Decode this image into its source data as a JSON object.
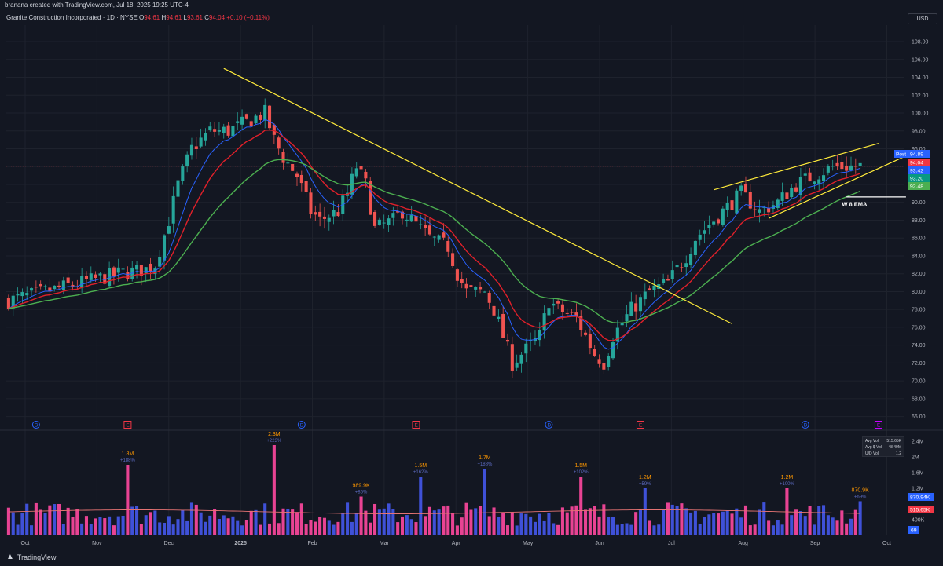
{
  "header": {
    "created_by": "branana created with TradingView.com, Jul 18, 2025 19:25 UTC-4",
    "instrument": "Granite Construction Incorporated · 1D · NYSE",
    "ohlc": {
      "o_label": "O",
      "o": "94.61",
      "h_label": "H",
      "h": "94.61",
      "l_label": "L",
      "l": "93.61",
      "c_label": "C",
      "c": "94.04",
      "change": "+0.10 (+0.11%)"
    },
    "currency": "USD"
  },
  "footer": {
    "brand": "TradingView"
  },
  "colors": {
    "background": "#131722",
    "up": "#26a69a",
    "down": "#ef5350",
    "ema_blue": "#2962ff",
    "ema_red": "#e0202a",
    "ema_green": "#4caf50",
    "trendline": "#ffeb3b",
    "vol_up": "#3f51d8",
    "vol_down": "#e84393"
  },
  "chart_data": [
    {
      "type": "candlestick",
      "price_axis": {
        "ticks": [
          "108.00",
          "106.00",
          "104.00",
          "102.00",
          "100.00",
          "98.00",
          "96.00",
          "94.00",
          "92.00",
          "90.00",
          "88.00",
          "86.00",
          "84.00",
          "82.00",
          "80.00",
          "78.00",
          "76.00",
          "74.00",
          "72.00",
          "70.00",
          "68.00",
          "66.00"
        ],
        "range": [
          65,
          109.5
        ]
      },
      "time_axis": {
        "labels": [
          "Oct",
          "Nov",
          "Dec",
          "2025",
          "Feb",
          "Mar",
          "Apr",
          "May",
          "Jun",
          "Jul",
          "Aug",
          "Sep",
          "Oct"
        ]
      },
      "price_path": [
        [
          0,
          79
        ],
        [
          8,
          80
        ],
        [
          16,
          81
        ],
        [
          24,
          82
        ],
        [
          30,
          82.5
        ],
        [
          32,
          83
        ],
        [
          35,
          88
        ],
        [
          37,
          92
        ],
        [
          40,
          96
        ],
        [
          44,
          98
        ],
        [
          48,
          98
        ],
        [
          52,
          99
        ],
        [
          56,
          100
        ],
        [
          58,
          97
        ],
        [
          60,
          95
        ],
        [
          63,
          93
        ],
        [
          66,
          89
        ],
        [
          68,
          88
        ],
        [
          72,
          89
        ],
        [
          74,
          91
        ],
        [
          76,
          94
        ],
        [
          78,
          92
        ],
        [
          80,
          87
        ],
        [
          84,
          88
        ],
        [
          86,
          89
        ],
        [
          88,
          88
        ],
        [
          92,
          86
        ],
        [
          96,
          85
        ],
        [
          98,
          82
        ],
        [
          100,
          80
        ],
        [
          104,
          80
        ],
        [
          106,
          78
        ],
        [
          108,
          75
        ],
        [
          110,
          72
        ],
        [
          112,
          73
        ],
        [
          116,
          75
        ],
        [
          118,
          79
        ],
        [
          120,
          78
        ],
        [
          124,
          77
        ],
        [
          126,
          75
        ],
        [
          128,
          73
        ],
        [
          130,
          72
        ],
        [
          132,
          75
        ],
        [
          136,
          78
        ],
        [
          140,
          80
        ],
        [
          144,
          81
        ],
        [
          148,
          84
        ],
        [
          150,
          86
        ],
        [
          152,
          87
        ],
        [
          154,
          88
        ],
        [
          156,
          89
        ],
        [
          160,
          91
        ],
        [
          162,
          90
        ],
        [
          164,
          89
        ],
        [
          168,
          90
        ],
        [
          172,
          92
        ],
        [
          176,
          93
        ],
        [
          180,
          94
        ],
        [
          184,
          94
        ],
        [
          186,
          94.04
        ]
      ],
      "last_price_labels": [
        {
          "name": "Post",
          "value": "94.89",
          "color": "#2962ff"
        },
        {
          "name": "",
          "value": "94.04",
          "color": "#f23645"
        },
        {
          "name": "",
          "value": "93.42",
          "color": "#2962ff"
        },
        {
          "name": "",
          "value": "93.20",
          "color": "#089981"
        },
        {
          "name": "",
          "value": "92.48",
          "color": "#4caf50"
        }
      ],
      "annotations": [
        {
          "text": "W 8 EMA"
        }
      ],
      "trendlines": [
        {
          "name": "downtrend",
          "from": [
            47,
            105.0
          ],
          "to": [
            158,
            76.4
          ]
        },
        {
          "name": "channel-top",
          "from": [
            154,
            91.4
          ],
          "to": [
            190,
            96.6
          ]
        },
        {
          "name": "channel-bottom",
          "from": [
            166,
            88.2
          ],
          "to": [
            196,
            95.2
          ]
        },
        {
          "name": "ema-marker",
          "from": [
            183,
            90.6
          ],
          "to": [
            196,
            90.6
          ]
        }
      ],
      "event_markers": [
        {
          "type": "D",
          "index": 6
        },
        {
          "type": "E",
          "index": 26
        },
        {
          "type": "D",
          "index": 64
        },
        {
          "type": "E",
          "index": 89
        },
        {
          "type": "D",
          "index": 118
        },
        {
          "type": "E",
          "index": 138
        },
        {
          "type": "D",
          "index": 174
        },
        {
          "type": "E",
          "index": 190
        }
      ]
    },
    {
      "type": "bar",
      "name": "Volume",
      "axis_ticks": [
        "2.4M",
        "2M",
        "1.6M",
        "1.2M",
        "400K"
      ],
      "axis_range": [
        0,
        2.6
      ],
      "avg_line_level": 0.6,
      "labels": [
        {
          "value": "1.8M",
          "pct": "+188%",
          "index": 26
        },
        {
          "value": "2.3M",
          "pct": "+223%",
          "index": 58
        },
        {
          "value": "989.9K",
          "pct": "+85%",
          "index": 77
        },
        {
          "value": "1.5M",
          "pct": "+162%",
          "index": 90
        },
        {
          "value": "1.7M",
          "pct": "+188%",
          "index": 104
        },
        {
          "value": "1.5M",
          "pct": "+102%",
          "index": 125
        },
        {
          "value": "1.2M",
          "pct": "+59%",
          "index": 139
        },
        {
          "value": "1.2M",
          "pct": "+100%",
          "index": 170
        },
        {
          "value": "870.9K",
          "pct": "+69%",
          "index": 186
        }
      ],
      "last_labels": [
        {
          "value": "870.94K",
          "color": "#2962ff"
        },
        {
          "value": "515.65K",
          "color": "#f23645"
        }
      ],
      "extra_label": "69",
      "stats": [
        {
          "label": "Avg Vol:",
          "value": "515.65K"
        },
        {
          "label": "Avg $ Vol:",
          "value": "48.49M"
        },
        {
          "label": "U/D Vol:",
          "value": "1.2"
        }
      ]
    }
  ]
}
